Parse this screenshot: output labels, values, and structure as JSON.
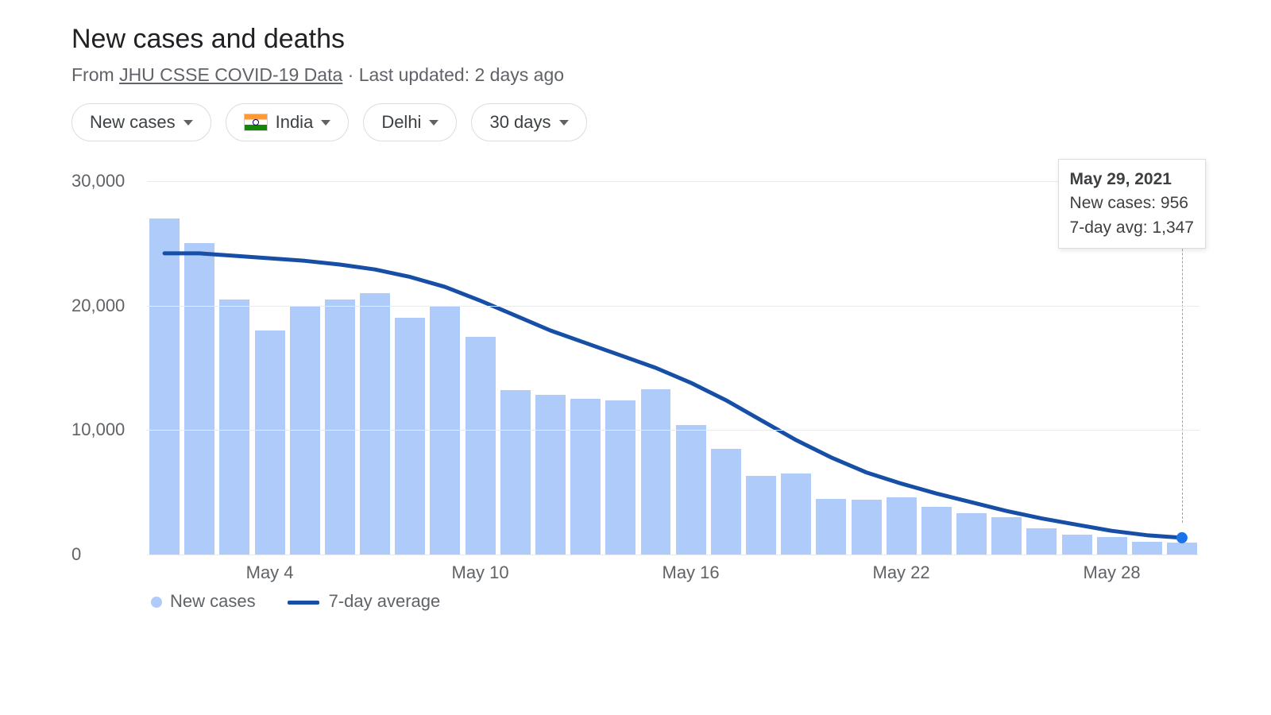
{
  "header": {
    "title": "New cases and deaths",
    "source_prefix": "From ",
    "source_text": "JHU CSSE COVID-19 Data",
    "updated_sep": " · ",
    "updated_text": "Last updated: 2 days ago"
  },
  "filters": {
    "metric": "New cases",
    "country": "India",
    "region": "Delhi",
    "range": "30 days"
  },
  "tooltip": {
    "date": "May 29, 2021",
    "line1_label": "New cases: ",
    "line1_value": "956",
    "line2_label": "7-day avg: ",
    "line2_value": "1,347"
  },
  "legend": {
    "bars_label": "New cases",
    "line_label": "7-day average"
  },
  "chart": {
    "type": "bar+line",
    "ylim": [
      0,
      30000
    ],
    "y_ticks": [
      0,
      10000,
      20000,
      30000
    ],
    "y_tick_labels": [
      "0",
      "10,000",
      "20,000",
      "30,000"
    ],
    "bar_color": "#aecbfa",
    "line_color": "#174ea6",
    "line_width": 5,
    "grid_color": "#e8eaed",
    "background_color": "#ffffff",
    "marker_color": "#1a73e8",
    "marker_radius": 7,
    "x_tick_indices": [
      4,
      10,
      16,
      22,
      28
    ],
    "x_tick_labels": [
      "May 4",
      "May 10",
      "May 16",
      "May 22",
      "May 28"
    ],
    "days": 30,
    "bars": [
      27000,
      25000,
      20500,
      18000,
      20000,
      20500,
      21000,
      19000,
      20000,
      17500,
      13200,
      12800,
      12500,
      12400,
      13300,
      10400,
      8500,
      6300,
      6500,
      4500,
      4400,
      4600,
      3800,
      3300,
      3000,
      2100,
      1600,
      1400,
      1000,
      956
    ],
    "avg_line": [
      24200,
      24200,
      24000,
      23800,
      23600,
      23300,
      22900,
      22300,
      21500,
      20400,
      19200,
      18000,
      17000,
      16000,
      15000,
      13800,
      12400,
      10800,
      9200,
      7800,
      6600,
      5700,
      4900,
      4200,
      3500,
      2900,
      2400,
      1900,
      1550,
      1347
    ],
    "hover_index": 29
  }
}
